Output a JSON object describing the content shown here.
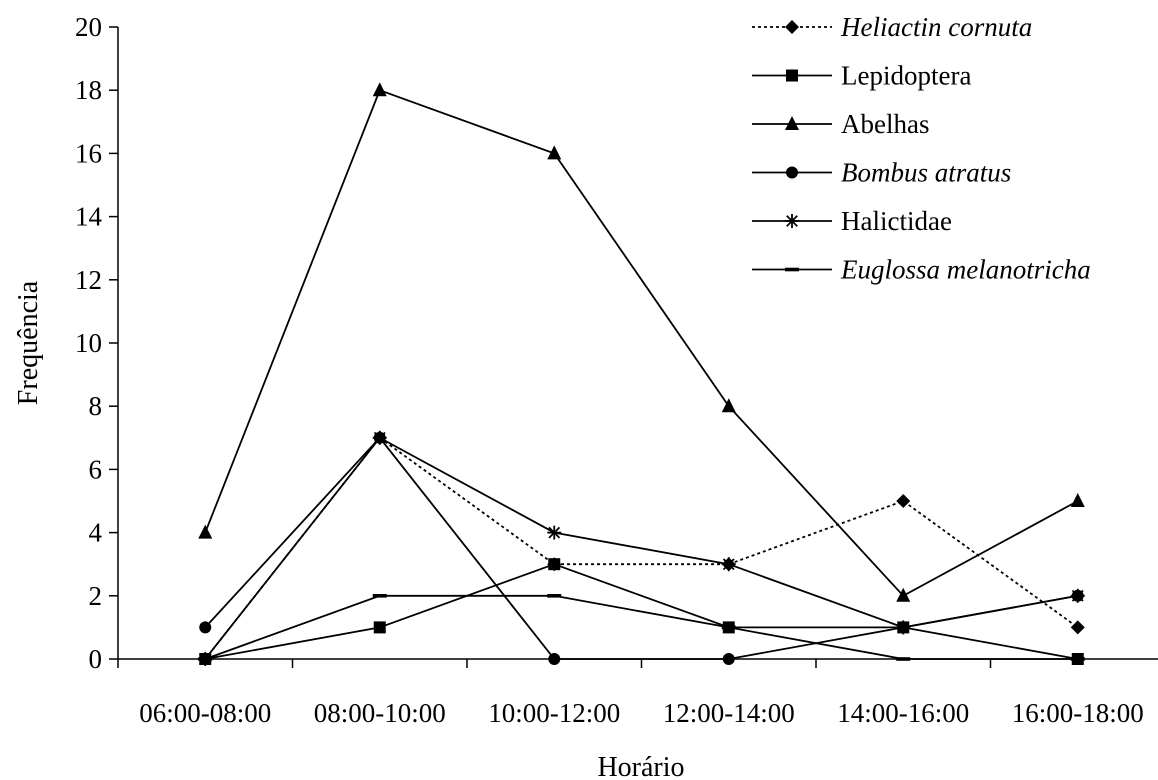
{
  "chart_data": {
    "type": "line",
    "title": "",
    "xlabel": "Horário",
    "ylabel": "Frequência",
    "ylim": [
      0,
      20
    ],
    "y_ticks": [
      0,
      2,
      4,
      6,
      8,
      10,
      12,
      14,
      16,
      18,
      20
    ],
    "categories": [
      "06:00-08:00",
      "08:00-10:00",
      "10:00-12:00",
      "12:00-14:00",
      "14:00-16:00",
      "16:00-18:00"
    ],
    "grid": false,
    "legend_position": "top-right",
    "series": [
      {
        "name": "Heliactin cornuta",
        "italic": true,
        "marker": "diamond",
        "dashed": true,
        "color": "#000000",
        "values": [
          0,
          7,
          3,
          3,
          5,
          1
        ]
      },
      {
        "name": "Lepidoptera",
        "italic": false,
        "marker": "square",
        "dashed": false,
        "color": "#000000",
        "values": [
          0,
          1,
          3,
          1,
          1,
          0
        ]
      },
      {
        "name": "Abelhas",
        "italic": false,
        "marker": "triangle",
        "dashed": false,
        "color": "#000000",
        "values": [
          4,
          18,
          16,
          8,
          2,
          5
        ]
      },
      {
        "name": "Bombus atratus",
        "italic": true,
        "marker": "circle",
        "dashed": false,
        "color": "#000000",
        "values": [
          1,
          7,
          0,
          0,
          1,
          2
        ]
      },
      {
        "name": "Halictidae",
        "italic": false,
        "marker": "star",
        "dashed": false,
        "color": "#000000",
        "values": [
          0,
          7,
          4,
          3,
          1,
          2
        ]
      },
      {
        "name": "Euglossa melanotricha",
        "italic": true,
        "marker": "dash",
        "dashed": false,
        "color": "#000000",
        "values": [
          0,
          2,
          2,
          1,
          0,
          0
        ]
      }
    ]
  }
}
